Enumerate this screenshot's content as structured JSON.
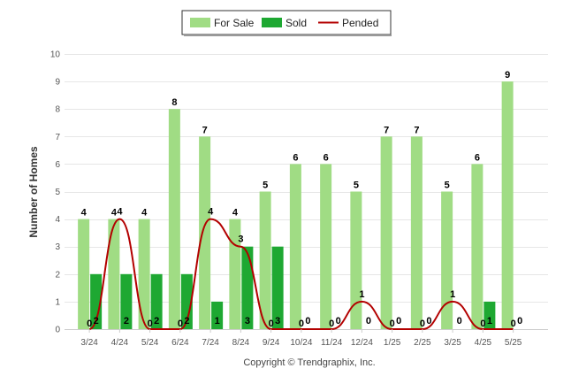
{
  "chart_data": {
    "type": "bar",
    "ylabel": "Number of Homes",
    "ylim": [
      0,
      10
    ],
    "yticks": [
      0,
      1,
      2,
      3,
      4,
      5,
      6,
      7,
      8,
      9,
      10
    ],
    "categories": [
      "3/24",
      "4/24",
      "5/24",
      "6/24",
      "7/24",
      "8/24",
      "9/24",
      "10/24",
      "11/24",
      "12/24",
      "1/25",
      "2/25",
      "3/25",
      "4/25",
      "5/25"
    ],
    "series": [
      {
        "name": "For Sale",
        "type": "bar",
        "color": "#a0dc84",
        "values": [
          4,
          4,
          4,
          8,
          7,
          4,
          5,
          6,
          6,
          5,
          7,
          7,
          5,
          6,
          9
        ]
      },
      {
        "name": "Sold",
        "type": "bar",
        "color": "#1ea832",
        "values": [
          2,
          2,
          2,
          2,
          1,
          3,
          3,
          0,
          0,
          0,
          0,
          0,
          0,
          1,
          0
        ]
      },
      {
        "name": "Pended",
        "type": "line",
        "color": "#b30000",
        "values": [
          0,
          4,
          0,
          0,
          4,
          3,
          0,
          0,
          0,
          1,
          0,
          0,
          1,
          0,
          0
        ]
      }
    ],
    "legend_position": "top-center",
    "grid": true
  },
  "footer": {
    "copyright": "Copyright © Trendgraphix, Inc."
  }
}
